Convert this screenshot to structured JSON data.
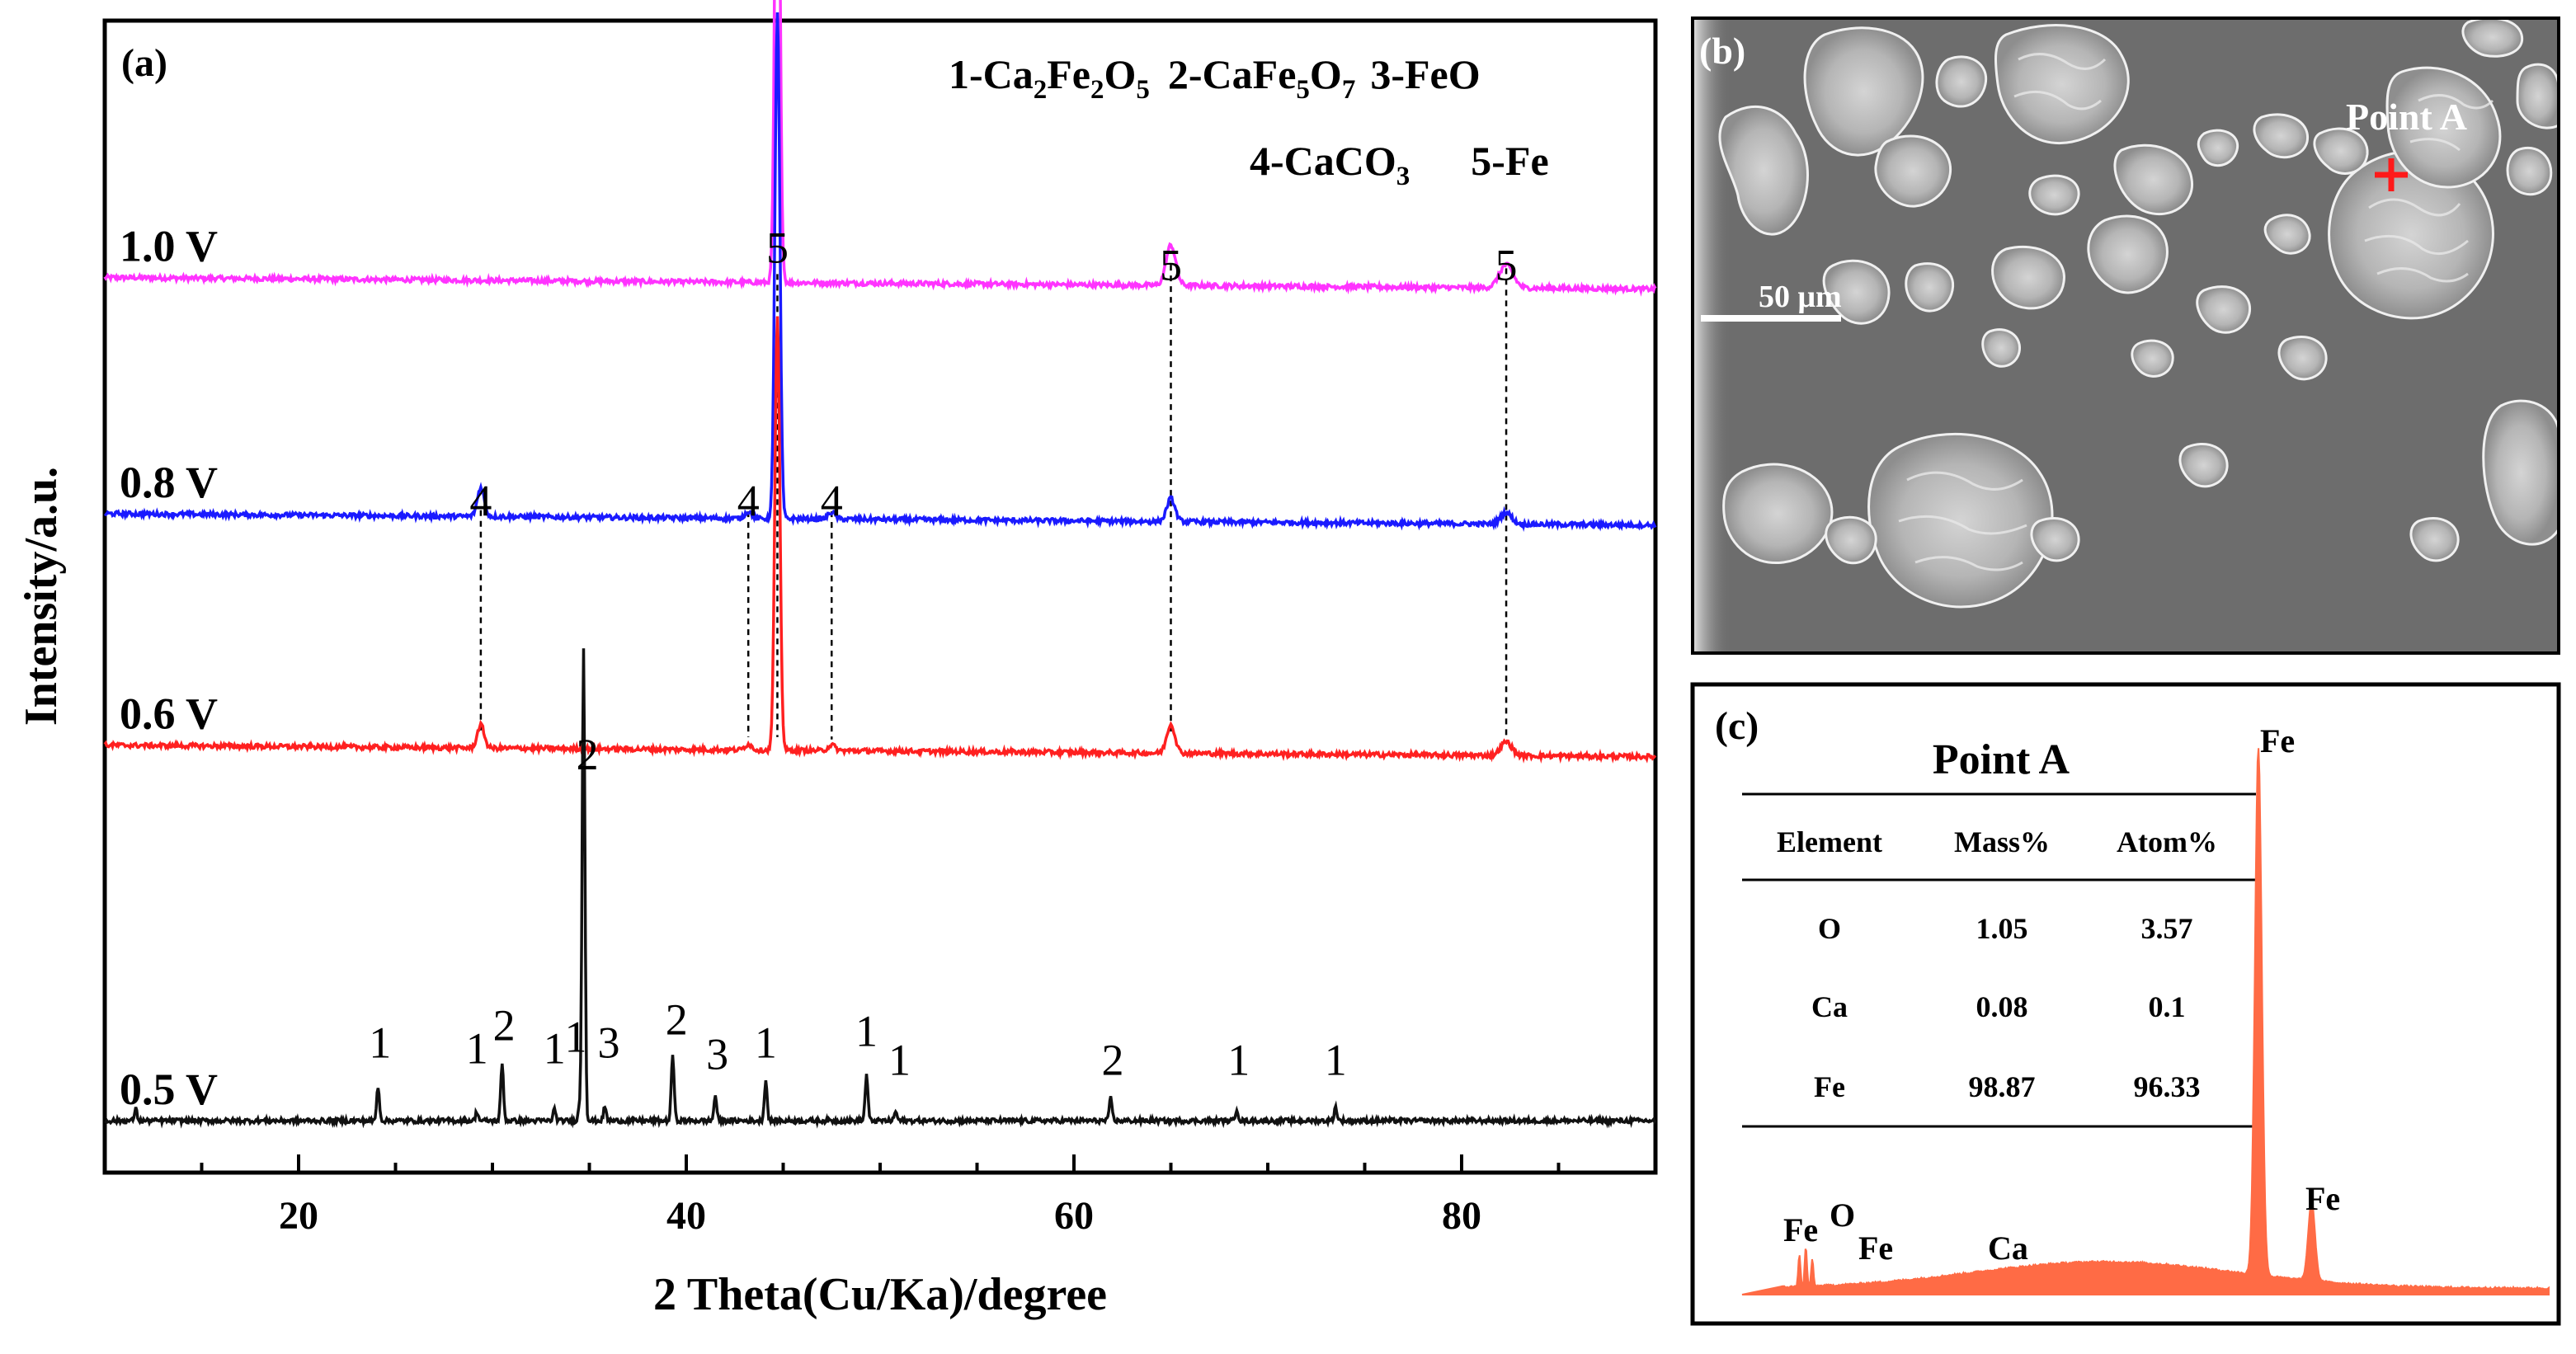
{
  "chart_data": [
    {
      "type": "line",
      "panel": "(a)",
      "xlabel": "2  Theta(Cu/Ka)/degree",
      "ylabel": "Intensity/a.u.",
      "xlim": [
        10,
        90
      ],
      "xticks": [
        20,
        40,
        60,
        80
      ],
      "grid": false,
      "legend": {
        "row1": [
          "1-Ca₂Fe₂O₅",
          "2-CaFe₅O₇",
          "3-FeO"
        ],
        "row2": [
          "4-CaCO₃",
          "5-Fe"
        ]
      },
      "series": [
        {
          "name": "1.0 V",
          "color": "#ff33ff",
          "baseline": 0.777,
          "drift": 0.01,
          "peaks": [
            [
              44.7,
              0.505,
              0.18
            ],
            [
              65.0,
              0.035,
              0.35
            ],
            [
              82.3,
              0.02,
              0.5
            ]
          ]
        },
        {
          "name": "0.8 V",
          "color": "#1a1aff",
          "baseline": 0.572,
          "drift": 0.01,
          "peaks": [
            [
              44.7,
              0.44,
              0.18
            ],
            [
              29.4,
              0.025,
              0.25
            ],
            [
              43.2,
              0.006,
              0.25
            ],
            [
              47.5,
              0.006,
              0.25
            ],
            [
              65.0,
              0.02,
              0.3
            ],
            [
              82.3,
              0.01,
              0.4
            ]
          ]
        },
        {
          "name": "0.6 V",
          "color": "#ff2020",
          "baseline": 0.371,
          "drift": 0.01,
          "peaks": [
            [
              44.7,
              0.375,
              0.18
            ],
            [
              29.4,
              0.02,
              0.25
            ],
            [
              43.2,
              0.005,
              0.25
            ],
            [
              47.5,
              0.005,
              0.25
            ],
            [
              65.0,
              0.025,
              0.3
            ],
            [
              82.3,
              0.012,
              0.4
            ]
          ]
        },
        {
          "name": "0.5 V",
          "color": "#111111",
          "baseline": 0.045,
          "drift": 0.0,
          "peaks": [
            [
              11.6,
              0.01,
              0.1
            ],
            [
              24.1,
              0.03,
              0.1
            ],
            [
              29.2,
              0.008,
              0.1
            ],
            [
              30.5,
              0.05,
              0.1
            ],
            [
              33.2,
              0.01,
              0.1
            ],
            [
              34.5,
              0.012,
              0.1
            ],
            [
              34.7,
              0.41,
              0.1
            ],
            [
              35.8,
              0.012,
              0.1
            ],
            [
              39.3,
              0.058,
              0.1
            ],
            [
              41.5,
              0.022,
              0.1
            ],
            [
              44.1,
              0.035,
              0.1
            ],
            [
              49.3,
              0.04,
              0.1
            ],
            [
              50.8,
              0.008,
              0.1
            ],
            [
              61.9,
              0.02,
              0.1
            ],
            [
              68.4,
              0.01,
              0.1
            ],
            [
              73.5,
              0.012,
              0.1
            ]
          ]
        }
      ],
      "peak_labels": [
        {
          "text": "5",
          "x": 44.7,
          "y": 0.79
        },
        {
          "text": "5",
          "x": 65.0,
          "y": 0.775
        },
        {
          "text": "5",
          "x": 82.3,
          "y": 0.775
        },
        {
          "text": "4",
          "x": 29.4,
          "y": 0.57
        },
        {
          "text": "4",
          "x": 43.2,
          "y": 0.57
        },
        {
          "text": "4",
          "x": 47.5,
          "y": 0.57
        },
        {
          "text": "1",
          "x": 24.2,
          "y": 0.1
        },
        {
          "text": "1",
          "x": 29.2,
          "y": 0.095
        },
        {
          "text": "2",
          "x": 30.6,
          "y": 0.115
        },
        {
          "text": "1",
          "x": 33.2,
          "y": 0.095
        },
        {
          "text": "1",
          "x": 34.3,
          "y": 0.105
        },
        {
          "text": "2",
          "x": 34.9,
          "y": 0.35
        },
        {
          "text": "3",
          "x": 36.0,
          "y": 0.1
        },
        {
          "text": "2",
          "x": 39.5,
          "y": 0.12
        },
        {
          "text": "3",
          "x": 41.6,
          "y": 0.09
        },
        {
          "text": "1",
          "x": 44.1,
          "y": 0.1
        },
        {
          "text": "1",
          "x": 49.3,
          "y": 0.11
        },
        {
          "text": "1",
          "x": 51.0,
          "y": 0.085
        },
        {
          "text": "2",
          "x": 62.0,
          "y": 0.085
        },
        {
          "text": "1",
          "x": 68.5,
          "y": 0.085
        },
        {
          "text": "1",
          "x": 73.5,
          "y": 0.085
        }
      ],
      "dashed_lines": [
        {
          "x": 44.7,
          "y": [
            0.78,
            0.378
          ]
        },
        {
          "x": 65.0,
          "y": [
            0.788,
            0.38
          ]
        },
        {
          "x": 82.3,
          "y": [
            0.785,
            0.378
          ]
        },
        {
          "x": 29.4,
          "y": [
            0.575,
            0.38
          ]
        },
        {
          "x": 43.2,
          "y": [
            0.574,
            0.378
          ]
        },
        {
          "x": 47.5,
          "y": [
            0.574,
            0.376
          ]
        }
      ]
    },
    {
      "type": "line",
      "panel": "(c)",
      "title": "Point A",
      "table": {
        "headers": [
          "Element",
          "Mass%",
          "Atom%"
        ],
        "rows": [
          [
            "O",
            "1.05",
            "3.57"
          ],
          [
            "Ca",
            "0.08",
            "0.1"
          ],
          [
            "Fe",
            "98.87",
            "96.33"
          ]
        ]
      },
      "spectrum_color": "#ff6b45",
      "spectrum_peaks": [
        [
          0.71,
          0.06
        ],
        [
          0.79,
          0.075
        ],
        [
          0.87,
          0.05
        ],
        [
          6.4,
          1.0
        ],
        [
          7.06,
          0.15
        ]
      ],
      "spectrum_baseline": 0.012,
      "spectrum_hump": 0.05,
      "spectrum_xlim": [
        0,
        10
      ],
      "peak_labels": [
        {
          "text": "Fe",
          "at": "fe-l"
        },
        {
          "text": "O",
          "at": "o-k"
        },
        {
          "text": "Fe",
          "at": "fe-l2"
        },
        {
          "text": "Ca",
          "at": "ca-k"
        },
        {
          "text": "Fe",
          "at": "fe-ka"
        },
        {
          "text": "Fe",
          "at": "fe-kb"
        }
      ]
    }
  ],
  "panel_b": {
    "label": "(b)",
    "point_label": "Point A",
    "scale_bar": "50 μm",
    "background": "#6d6d6d",
    "marker_color": "#ff1a1a"
  }
}
